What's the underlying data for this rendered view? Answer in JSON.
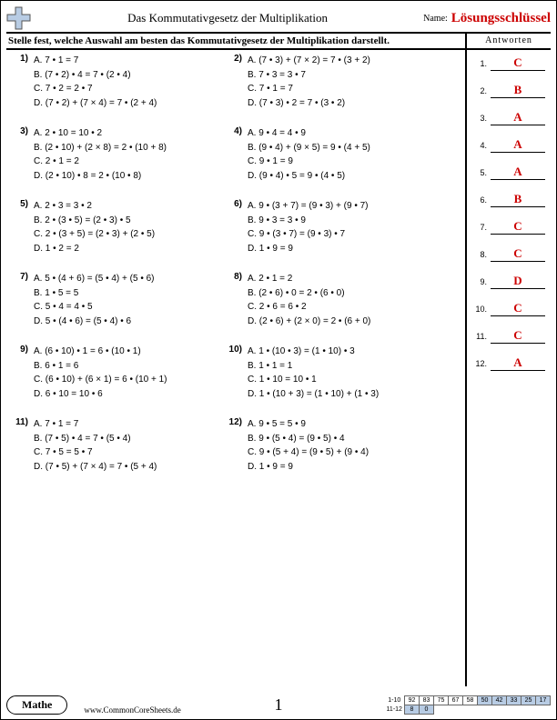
{
  "header": {
    "title": "Das Kommutativgesetz der Multiplikation",
    "name_label": "Name:",
    "answer_key": "Lösungsschlüssel",
    "icon": {
      "fill": "#b8cce4",
      "stroke": "#333"
    }
  },
  "instruction": "Stelle fest, welche Auswahl am besten das Kommutativgesetz der Multiplikation darstellt.",
  "answers_heading": "Antworten",
  "problems": [
    {
      "n": "1)",
      "opts": [
        "A. 7 • 1 = 7",
        "B. (7 • 2) • 4 = 7 • (2 • 4)",
        "C. 7 • 2 = 2 • 7",
        "D. (7 • 2) + (7 × 4) = 7 • (2 + 4)"
      ]
    },
    {
      "n": "2)",
      "opts": [
        "A. (7 • 3) + (7 × 2) = 7 • (3 + 2)",
        "B. 7 • 3 = 3 • 7",
        "C. 7 • 1 = 7",
        "D. (7 • 3) • 2 = 7 • (3 • 2)"
      ]
    },
    {
      "n": "3)",
      "opts": [
        "A. 2 • 10 = 10 • 2",
        "B. (2 • 10) + (2 × 8) = 2 • (10 + 8)",
        "C. 2 • 1 = 2",
        "D. (2 • 10) • 8 = 2 • (10 • 8)"
      ]
    },
    {
      "n": "4)",
      "opts": [
        "A. 9 • 4 = 4 • 9",
        "B. (9 • 4) + (9 × 5) = 9 • (4 + 5)",
        "C. 9 • 1 = 9",
        "D. (9 • 4) • 5 = 9 • (4 • 5)"
      ]
    },
    {
      "n": "5)",
      "opts": [
        "A. 2 • 3 = 3 • 2",
        "B. 2 • (3 • 5) = (2 • 3) • 5",
        "C. 2 • (3 + 5) = (2 • 3) + (2 • 5)",
        "D. 1 • 2 = 2"
      ]
    },
    {
      "n": "6)",
      "opts": [
        "A. 9 • (3 + 7) = (9 • 3) + (9 • 7)",
        "B. 9 • 3 = 3 • 9",
        "C. 9 • (3 • 7) = (9 • 3) • 7",
        "D. 1 • 9 = 9"
      ]
    },
    {
      "n": "7)",
      "opts": [
        "A. 5 • (4 + 6) = (5 • 4) + (5 • 6)",
        "B. 1 • 5 = 5",
        "C. 5 • 4 = 4 • 5",
        "D. 5 • (4 • 6) = (5 • 4) • 6"
      ]
    },
    {
      "n": "8)",
      "opts": [
        "A. 2 • 1 = 2",
        "B. (2 • 6) • 0 = 2 • (6 • 0)",
        "C. 2 • 6 = 6 • 2",
        "D. (2 • 6) + (2 × 0) = 2 • (6 + 0)"
      ]
    },
    {
      "n": "9)",
      "opts": [
        "A. (6 • 10) • 1 = 6 • (10 • 1)",
        "B. 6 • 1 = 6",
        "C. (6 • 10) + (6 × 1) = 6 • (10 + 1)",
        "D. 6 • 10 = 10 • 6"
      ]
    },
    {
      "n": "10)",
      "opts": [
        "A. 1 • (10 • 3) = (1 • 10) • 3",
        "B. 1 • 1 = 1",
        "C. 1 • 10 = 10 • 1",
        "D. 1 • (10 + 3) = (1 • 10) + (1 • 3)"
      ]
    },
    {
      "n": "11)",
      "opts": [
        "A. 7 • 1 = 7",
        "B. (7 • 5) • 4 = 7 • (5 • 4)",
        "C. 7 • 5 = 5 • 7",
        "D. (7 • 5) + (7 × 4) = 7 • (5 + 4)"
      ]
    },
    {
      "n": "12)",
      "opts": [
        "A. 9 • 5 = 5 • 9",
        "B. 9 • (5 • 4) = (9 • 5) • 4",
        "C. 9 • (5 + 4) = (9 • 5) + (9 • 4)",
        "D. 1 • 9 = 9"
      ]
    }
  ],
  "answers": [
    "C",
    "B",
    "A",
    "A",
    "A",
    "B",
    "C",
    "C",
    "D",
    "C",
    "C",
    "A"
  ],
  "footer": {
    "subject": "Mathe",
    "url": "www.CommonCoreSheets.de",
    "page_number": "1",
    "score_rows": [
      {
        "label": "1-10",
        "cells": [
          "92",
          "83",
          "75",
          "67",
          "58",
          "50",
          "42",
          "33",
          "25",
          "17"
        ],
        "shaded_from": 5
      },
      {
        "label": "11-12",
        "cells": [
          "8",
          "0"
        ],
        "shaded_from": 0
      }
    ]
  },
  "colors": {
    "answer_red": "#c00",
    "shade_blue": "#b8cce4"
  }
}
